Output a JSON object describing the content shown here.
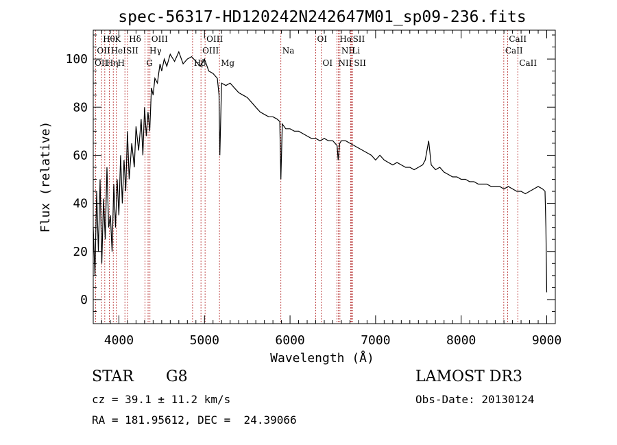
{
  "chart_data": {
    "type": "line",
    "title": "spec-56317-HD120242N242647M01_sp09-236.fits",
    "xlabel": "Wavelength (Å)",
    "ylabel": "Flux (relative)",
    "xlim": [
      3700,
      9100
    ],
    "ylim": [
      -10,
      112
    ],
    "xticks": [
      4000,
      5000,
      6000,
      7000,
      8000,
      9000
    ],
    "yticks": [
      0,
      20,
      40,
      60,
      80,
      100
    ],
    "grid": false,
    "colors": {
      "spectrum": "#000000",
      "lines": "#b22222"
    },
    "series": [
      {
        "x": [
          3700,
          3720,
          3740,
          3760,
          3780,
          3800,
          3820,
          3840,
          3860,
          3880,
          3900,
          3920,
          3940,
          3960,
          3980,
          4000,
          4020,
          4040,
          4060,
          4080,
          4100,
          4120,
          4150,
          4180,
          4200,
          4230,
          4260,
          4280,
          4300,
          4320,
          4340,
          4360,
          4380,
          4400,
          4420,
          4450,
          4480,
          4500,
          4530,
          4560,
          4600,
          4650,
          4700,
          4750,
          4800,
          4850,
          4900,
          4950,
          5000,
          5050,
          5100,
          5150,
          5170,
          5180,
          5200,
          5250,
          5300,
          5350,
          5400,
          5450,
          5500,
          5550,
          5600,
          5650,
          5700,
          5750,
          5800,
          5850,
          5880,
          5893,
          5910,
          5950,
          6000,
          6050,
          6100,
          6150,
          6200,
          6250,
          6300,
          6350,
          6400,
          6450,
          6500,
          6550,
          6563,
          6580,
          6600,
          6650,
          6700,
          6750,
          6800,
          6850,
          6900,
          6950,
          7000,
          7050,
          7100,
          7150,
          7200,
          7250,
          7300,
          7350,
          7400,
          7450,
          7500,
          7550,
          7580,
          7600,
          7620,
          7650,
          7700,
          7750,
          7800,
          7850,
          7900,
          7950,
          8000,
          8050,
          8100,
          8150,
          8200,
          8250,
          8300,
          8350,
          8400,
          8450,
          8500,
          8550,
          8600,
          8650,
          8700,
          8750,
          8800,
          8850,
          8900,
          8950,
          8980,
          8990,
          9000
        ],
        "y": [
          30,
          10,
          45,
          20,
          50,
          15,
          42,
          25,
          55,
          30,
          35,
          20,
          48,
          30,
          50,
          35,
          60,
          40,
          58,
          45,
          70,
          50,
          65,
          55,
          72,
          62,
          75,
          60,
          80,
          68,
          78,
          70,
          88,
          85,
          92,
          90,
          98,
          95,
          100,
          97,
          102,
          99,
          103,
          98,
          100,
          101,
          99,
          97,
          100,
          95,
          94,
          92,
          85,
          60,
          90,
          89,
          90,
          88,
          86,
          85,
          84,
          82,
          80,
          78,
          77,
          76,
          76,
          75,
          74,
          50,
          73,
          71,
          71,
          70,
          70,
          69,
          68,
          67,
          67,
          66,
          67,
          66,
          66,
          64,
          58,
          65,
          66,
          66,
          65,
          64,
          63,
          62,
          61,
          60,
          58,
          60,
          58,
          57,
          56,
          57,
          56,
          55,
          55,
          54,
          55,
          56,
          58,
          62,
          66,
          56,
          54,
          55,
          53,
          52,
          51,
          51,
          50,
          50,
          49,
          49,
          48,
          48,
          48,
          47,
          47,
          47,
          46,
          47,
          46,
          45,
          45,
          44,
          45,
          46,
          47,
          46,
          45,
          30,
          3
        ]
      }
    ],
    "line_labels": [
      {
        "text": "Hθ",
        "x": 3797,
        "row": 1
      },
      {
        "text": "K",
        "x": 3934,
        "row": 1
      },
      {
        "text": "Hδ",
        "x": 4102,
        "row": 1
      },
      {
        "text": "OIII",
        "x": 4363,
        "row": 1
      },
      {
        "text": "OIII",
        "x": 5007,
        "row": 1
      },
      {
        "text": "OI",
        "x": 6300,
        "row": 1
      },
      {
        "text": "Hα",
        "x": 6563,
        "row": 1
      },
      {
        "text": "SII",
        "x": 6717,
        "row": 1
      },
      {
        "text": "CaII",
        "x": 8542,
        "row": 1
      },
      {
        "text": "OII",
        "x": 3727,
        "row": 2
      },
      {
        "text": "HeI",
        "x": 3889,
        "row": 2
      },
      {
        "text": "SII",
        "x": 4070,
        "row": 2
      },
      {
        "text": "Hγ",
        "x": 4341,
        "row": 2
      },
      {
        "text": "OIII",
        "x": 4959,
        "row": 2
      },
      {
        "text": "Na",
        "x": 5893,
        "row": 2
      },
      {
        "text": "NII",
        "x": 6583,
        "row": 2
      },
      {
        "text": "Li",
        "x": 6708,
        "row": 2
      },
      {
        "text": "CaII",
        "x": 8498,
        "row": 2
      },
      {
        "text": "OII",
        "x": 3700,
        "row": 3
      },
      {
        "text": "Hη",
        "x": 3835,
        "row": 3
      },
      {
        "text": "H",
        "x": 3968,
        "row": 3
      },
      {
        "text": "G",
        "x": 4304,
        "row": 3
      },
      {
        "text": "Hβ",
        "x": 4861,
        "row": 3
      },
      {
        "text": "Mg",
        "x": 5175,
        "row": 3
      },
      {
        "text": "OI",
        "x": 6364,
        "row": 3
      },
      {
        "text": "NII",
        "x": 6548,
        "row": 3
      },
      {
        "text": "SII",
        "x": 6731,
        "row": 3
      },
      {
        "text": "CaII",
        "x": 8662,
        "row": 3
      }
    ],
    "line_marks": [
      3727,
      3797,
      3835,
      3889,
      3934,
      3968,
      4070,
      4102,
      4304,
      4341,
      4363,
      4861,
      4959,
      5007,
      5175,
      5893,
      6300,
      6364,
      6548,
      6563,
      6583,
      6708,
      6717,
      6731,
      8498,
      8542,
      8662
    ]
  },
  "info": {
    "object_type": "STAR",
    "subclass": "G8",
    "survey": "LAMOST DR3",
    "cz": "cz = 39.1 ± 11.2 km/s",
    "obs_date": "Obs-Date: 20130124",
    "coords": "RA = 181.95612, DEC =  24.39066"
  }
}
